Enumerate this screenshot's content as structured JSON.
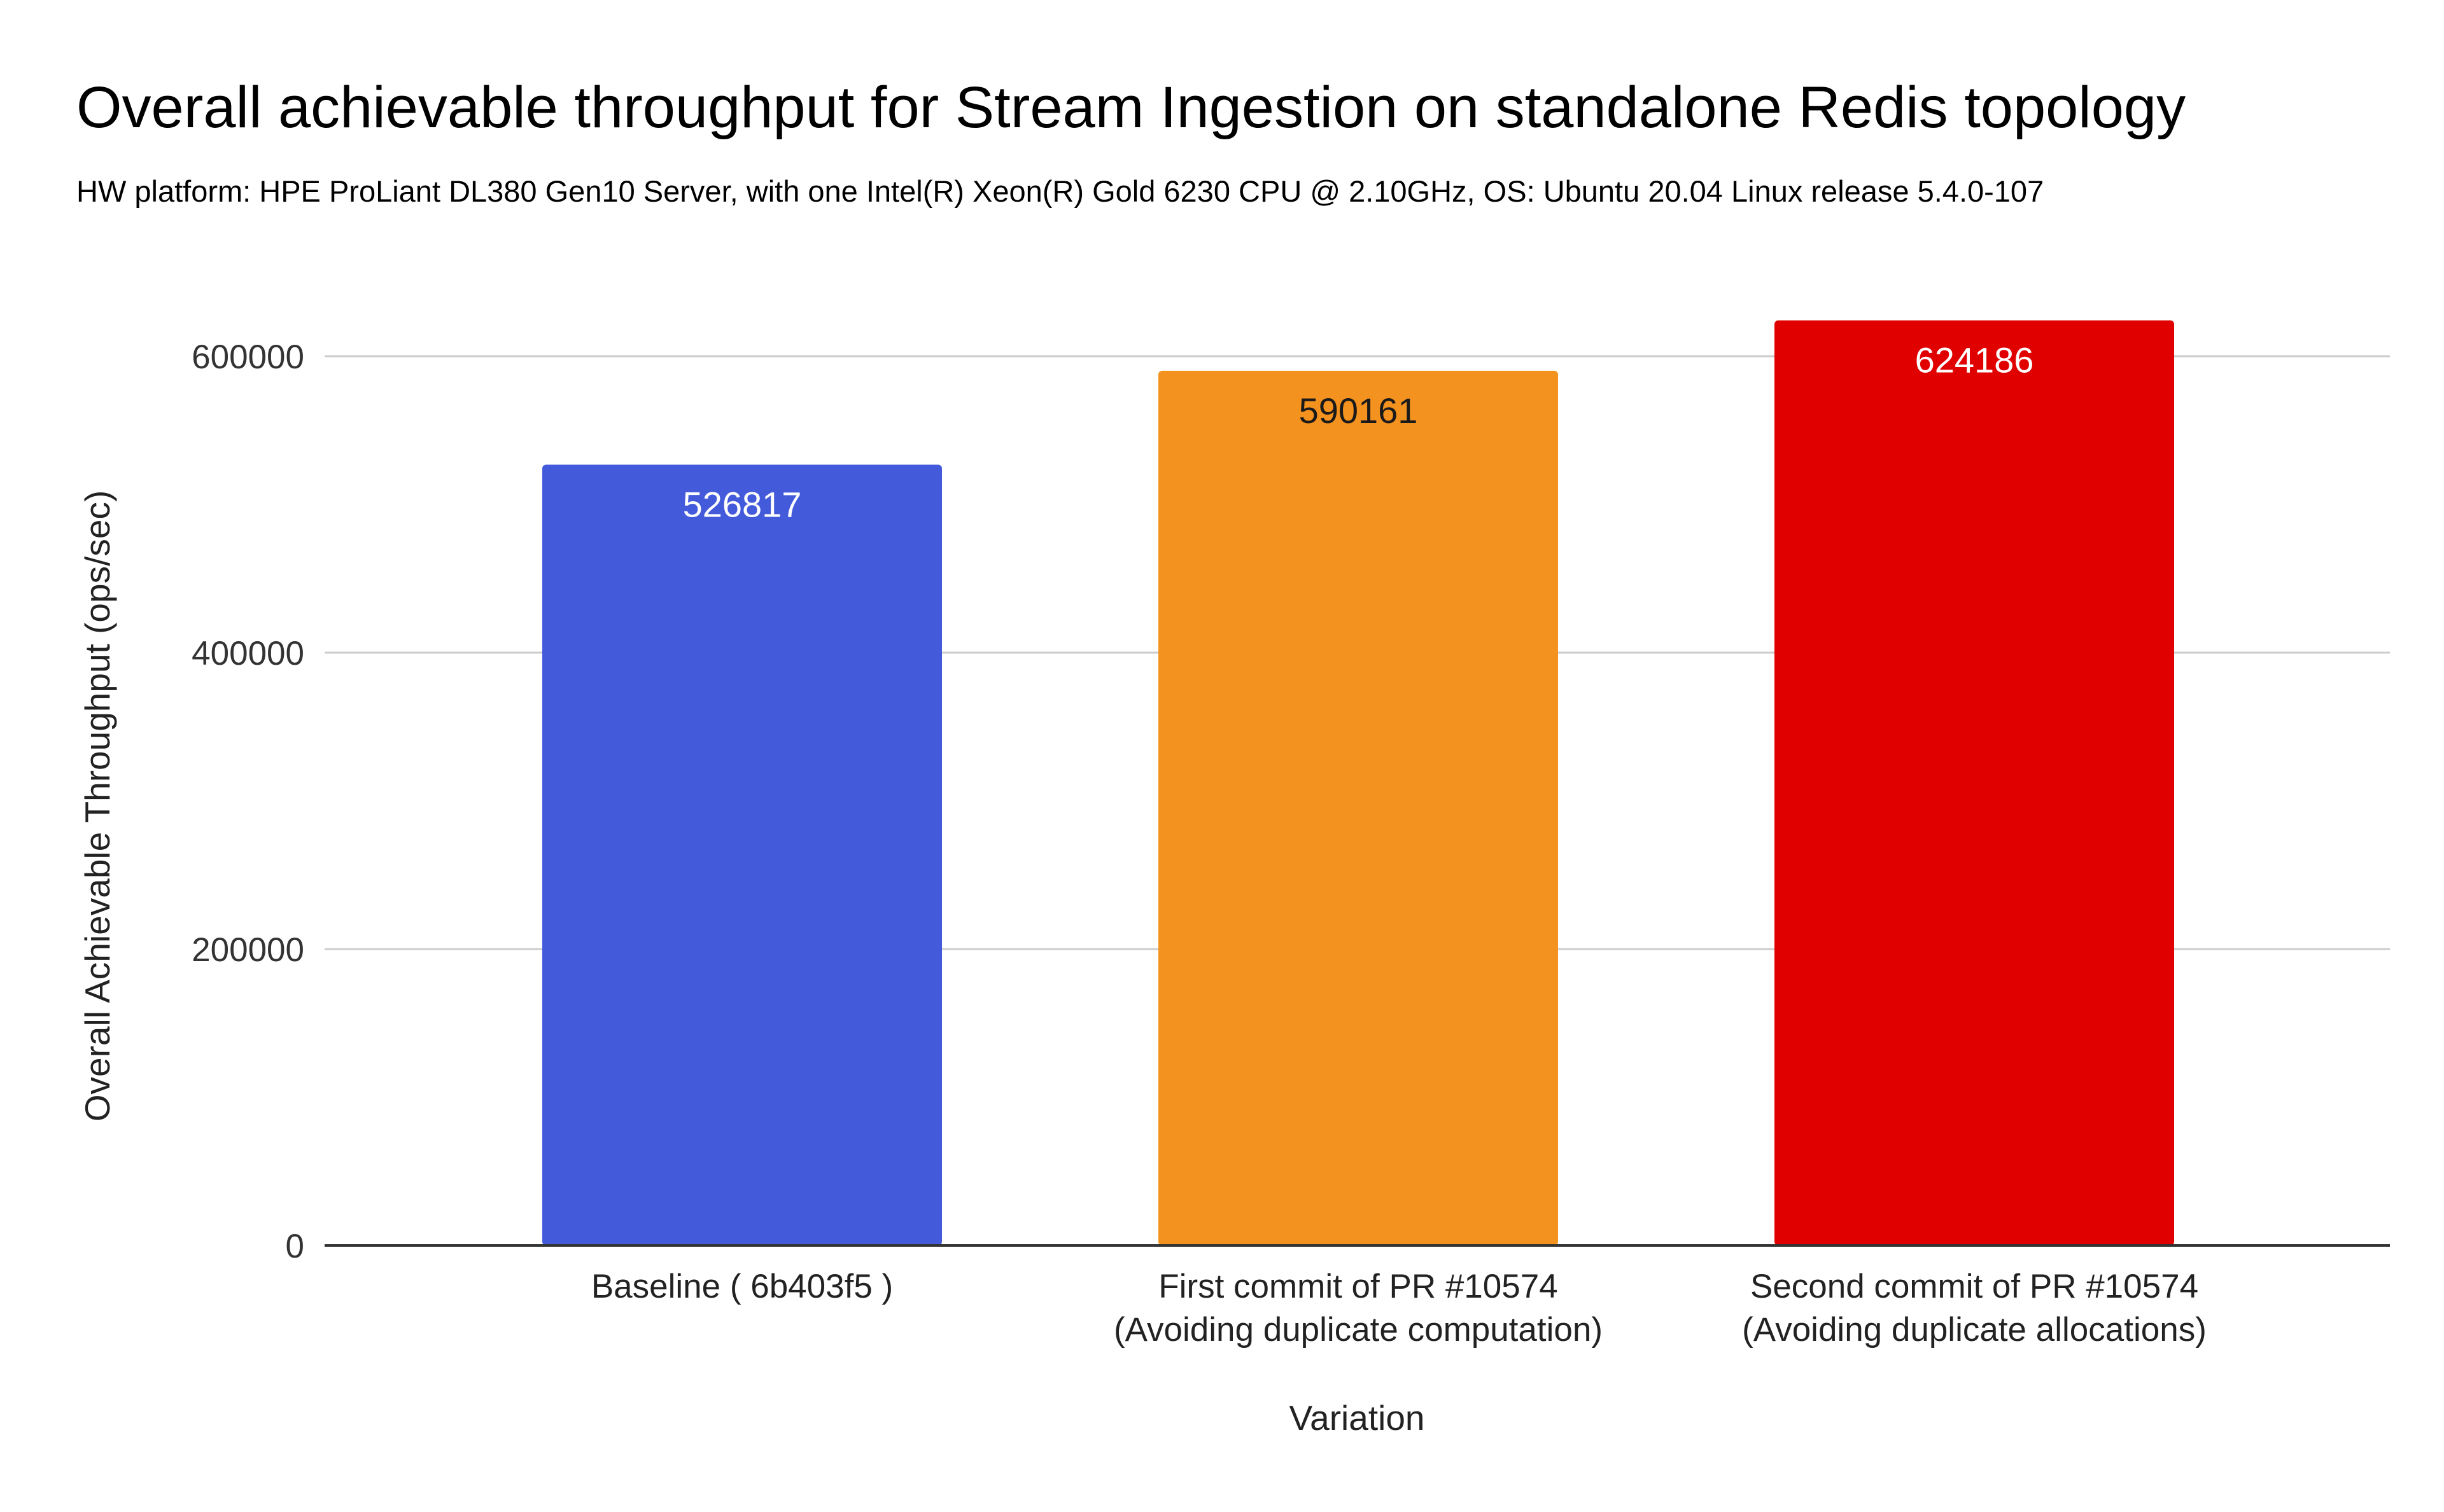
{
  "chart_data": {
    "type": "bar",
    "title": "Overall achievable throughput for Stream Ingestion on standalone Redis topology",
    "subtitle": "HW platform: HPE ProLiant DL380 Gen10 Server, with one Intel(R) Xeon(R) Gold 6230 CPU @ 2.10GHz, OS: Ubuntu 20.04 Linux release 5.4.0-107",
    "xlabel": "Variation",
    "ylabel": "Overall Achievable Throughput (ops/sec)",
    "ylim": [
      0,
      600000
    ],
    "yticks": [
      0,
      200000,
      400000,
      600000
    ],
    "ytick_labels": [
      "0",
      "200000",
      "400000",
      "600000"
    ],
    "grid": true,
    "legend": "none",
    "categories": [
      [
        "Baseline ( 6b403f5 )"
      ],
      [
        "First commit of PR #10574",
        "(Avoiding duplicate computation)"
      ],
      [
        "Second commit of PR #10574",
        "(Avoiding duplicate allocations)"
      ]
    ],
    "values": [
      526817,
      590161,
      624186
    ],
    "data_labels": [
      "526817",
      "590161",
      "624186"
    ],
    "bar_colors": [
      "#435bdb",
      "#f4921f",
      "#e00000"
    ],
    "data_label_colors": [
      "#ffffff",
      "#1a1a1a",
      "#ffffff"
    ]
  }
}
